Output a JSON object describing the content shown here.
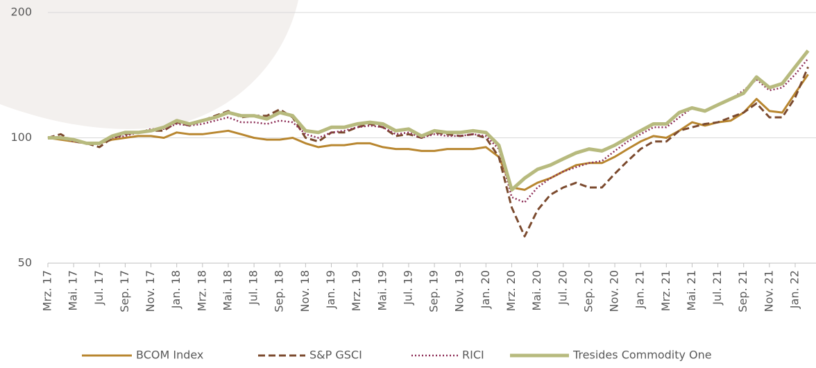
{
  "chart_data": {
    "type": "line",
    "yscale": "log",
    "grid": true,
    "legend": "bottom",
    "categories": [
      "Mrz. 17",
      null,
      "Mai. 17",
      null,
      "Jul. 17",
      null,
      "Sep. 17",
      null,
      "Nov. 17",
      null,
      "Jan. 18",
      null,
      "Mrz. 18",
      null,
      "Mai. 18",
      null,
      "Jul. 18",
      null,
      "Sep. 18",
      null,
      "Nov. 18",
      null,
      "Jan. 19",
      null,
      "Mrz. 19",
      null,
      "Mai. 19",
      null,
      "Jul. 19",
      null,
      "Sep. 19",
      null,
      "Nov. 19",
      null,
      "Jan. 20",
      null,
      "Mrz. 20",
      null,
      "Mai. 20",
      null,
      "Jul. 20",
      null,
      "Sep. 20",
      null,
      "Nov. 20",
      null,
      "Jan. 21",
      null,
      "Mrz. 21",
      null,
      "Mai. 21",
      null,
      "Jul. 21",
      null,
      "Sep. 21",
      null,
      "Nov. 21",
      null,
      "Jan. 22",
      null
    ],
    "ylim": [
      50,
      200
    ],
    "yticks": [
      50,
      100,
      200
    ],
    "series": [
      {
        "name": "BCOM Index",
        "color": "#b8862f",
        "dash": "solid",
        "width": 3,
        "values": [
          100,
          99,
          98,
          97,
          97,
          99,
          100,
          101,
          101,
          100,
          103,
          102,
          102,
          103,
          104,
          102,
          100,
          99,
          99,
          100,
          97,
          95,
          96,
          96,
          97,
          97,
          95,
          94,
          94,
          93,
          93,
          94,
          94,
          94,
          95,
          90,
          76,
          75,
          78,
          80,
          83,
          86,
          87,
          87,
          90,
          94,
          98,
          101,
          100,
          104,
          109,
          107,
          109,
          110,
          115,
          124,
          116,
          115,
          128,
          142
        ]
      },
      {
        "name": "S&P GSCI",
        "color": "#7b4a2e",
        "dash": "dashed",
        "width": 3,
        "values": [
          100,
          102,
          98,
          97,
          95,
          100,
          102,
          103,
          104,
          104,
          109,
          107,
          110,
          113,
          116,
          112,
          113,
          113,
          117,
          112,
          100,
          98,
          103,
          103,
          106,
          108,
          106,
          101,
          102,
          100,
          103,
          102,
          101,
          102,
          100,
          90,
          68,
          58,
          67,
          73,
          76,
          78,
          76,
          76,
          82,
          88,
          94,
          98,
          98,
          104,
          106,
          108,
          109,
          112,
          115,
          121,
          112,
          112,
          125,
          148
        ]
      },
      {
        "name": "RICI",
        "color": "#8c2c55",
        "dash": "dotted",
        "width": 2.5,
        "values": [
          100,
          100,
          98,
          97,
          97,
          100,
          101,
          103,
          105,
          105,
          108,
          107,
          108,
          110,
          112,
          109,
          109,
          108,
          110,
          109,
          102,
          100,
          103,
          104,
          106,
          107,
          106,
          102,
          103,
          100,
          102,
          101,
          101,
          102,
          101,
          94,
          72,
          70,
          76,
          80,
          83,
          85,
          87,
          88,
          93,
          98,
          102,
          106,
          106,
          112,
          118,
          116,
          120,
          124,
          130,
          138,
          130,
          132,
          142,
          155
        ]
      },
      {
        "name": "Tresides Commodity One",
        "color": "#b7ba7e",
        "dash": "solid",
        "width": 5,
        "values": [
          100,
          100,
          99,
          97,
          97,
          101,
          103,
          103,
          104,
          106,
          110,
          108,
          110,
          112,
          115,
          113,
          113,
          111,
          115,
          113,
          104,
          103,
          106,
          106,
          108,
          109,
          108,
          104,
          105,
          101,
          104,
          103,
          103,
          104,
          103,
          96,
          75,
          80,
          84,
          86,
          89,
          92,
          94,
          93,
          96,
          100,
          104,
          108,
          108,
          115,
          118,
          116,
          120,
          124,
          128,
          140,
          132,
          135,
          148,
          162
        ]
      }
    ]
  }
}
